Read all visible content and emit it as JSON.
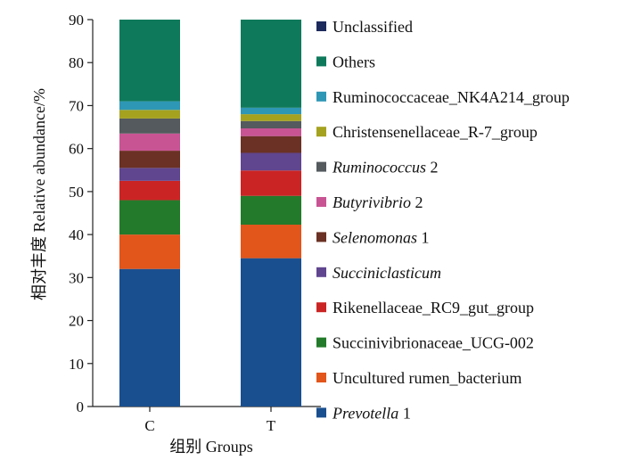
{
  "chart_data": {
    "type": "bar",
    "stacked": true,
    "categories": [
      "C",
      "T"
    ],
    "xlabel": "组别 Groups",
    "ylabel": "相对丰度 Relative abundance/%",
    "ylim": [
      0,
      90
    ],
    "yticks": [
      0,
      10,
      20,
      30,
      40,
      50,
      60,
      70,
      80,
      90
    ],
    "grid": false,
    "legend_position": "right",
    "series": [
      {
        "name": "Prevotella",
        "name_suffix": " 1",
        "italic": true,
        "color": "#1a4f8f",
        "values": [
          32.0,
          34.5
        ]
      },
      {
        "name": "Uncultured rumen_bacterium",
        "name_suffix": "",
        "italic": false,
        "color": "#e2551b",
        "values": [
          8.0,
          7.8
        ]
      },
      {
        "name": "Succinivibrionaceae_UCG-002",
        "name_suffix": "",
        "italic": false,
        "color": "#237a2a",
        "values": [
          8.0,
          6.7
        ]
      },
      {
        "name": "Rikenellaceae_RC9_gut_group",
        "name_suffix": "",
        "italic": false,
        "color": "#cb2424",
        "values": [
          4.5,
          5.9
        ]
      },
      {
        "name": "Succiniclasticum",
        "name_suffix": "",
        "italic": true,
        "color": "#60458f",
        "values": [
          3.0,
          4.1
        ]
      },
      {
        "name": "Selenomonas",
        "name_suffix": " 1",
        "italic": true,
        "color": "#6a3124",
        "values": [
          4.0,
          3.9
        ]
      },
      {
        "name": "Butyrivibrio",
        "name_suffix": " 2",
        "italic": true,
        "color": "#c85494",
        "values": [
          4.0,
          1.8
        ]
      },
      {
        "name": "Ruminococcus",
        "name_suffix": " 2",
        "italic": true,
        "color": "#545a5e",
        "values": [
          3.5,
          1.7
        ]
      },
      {
        "name": "Christensenellaceae_R-7_group",
        "name_suffix": "",
        "italic": false,
        "color": "#a5a220",
        "values": [
          2.0,
          1.6
        ]
      },
      {
        "name": "Ruminococcaceae_NK4A214_group",
        "name_suffix": "",
        "italic": false,
        "color": "#2e97b5",
        "values": [
          2.0,
          1.5
        ]
      },
      {
        "name": "Others",
        "name_suffix": "",
        "italic": false,
        "color": "#0f7a5b",
        "values": [
          19.0,
          20.5
        ]
      },
      {
        "name": "Unclassified",
        "name_suffix": "",
        "italic": false,
        "color": "#1d2a5c",
        "values": [
          0,
          0
        ]
      }
    ]
  }
}
